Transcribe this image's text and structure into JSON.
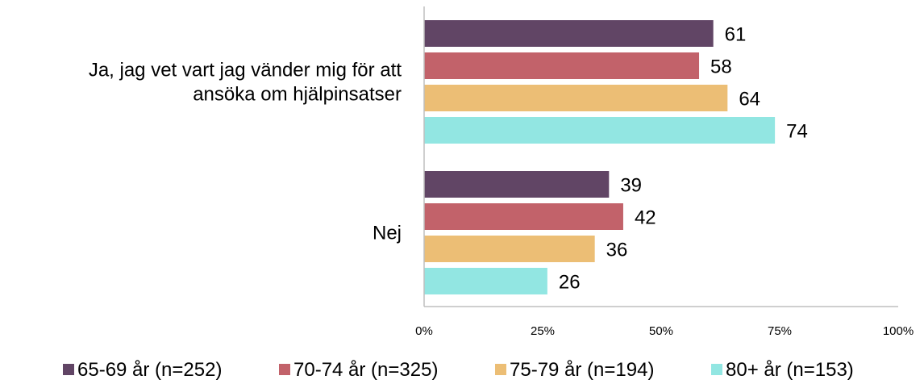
{
  "chart_data": {
    "type": "bar",
    "orientation": "horizontal",
    "categories": [
      [
        "Ja, jag vet vart jag vänder mig för att",
        "ansöka om hjälpinsatser"
      ],
      [
        "Nej"
      ]
    ],
    "series": [
      {
        "name": "65-69 år (n=252)",
        "color": "#614565",
        "values": [
          61,
          39
        ]
      },
      {
        "name": "70-74 år (n=325)",
        "color": "#C2626A",
        "values": [
          58,
          42
        ]
      },
      {
        "name": "75-79 år (n=194)",
        "color": "#ECBE75",
        "values": [
          64,
          36
        ]
      },
      {
        "name": "80+ år (n=153)",
        "color": "#92E6E2",
        "values": [
          74,
          26
        ]
      }
    ],
    "xlim": [
      0,
      100
    ],
    "x_ticks": [
      "0%",
      "25%",
      "50%",
      "75%",
      "100%"
    ],
    "title": "",
    "xlabel": "",
    "ylabel": "",
    "grid": false,
    "legend_position": "bottom"
  }
}
